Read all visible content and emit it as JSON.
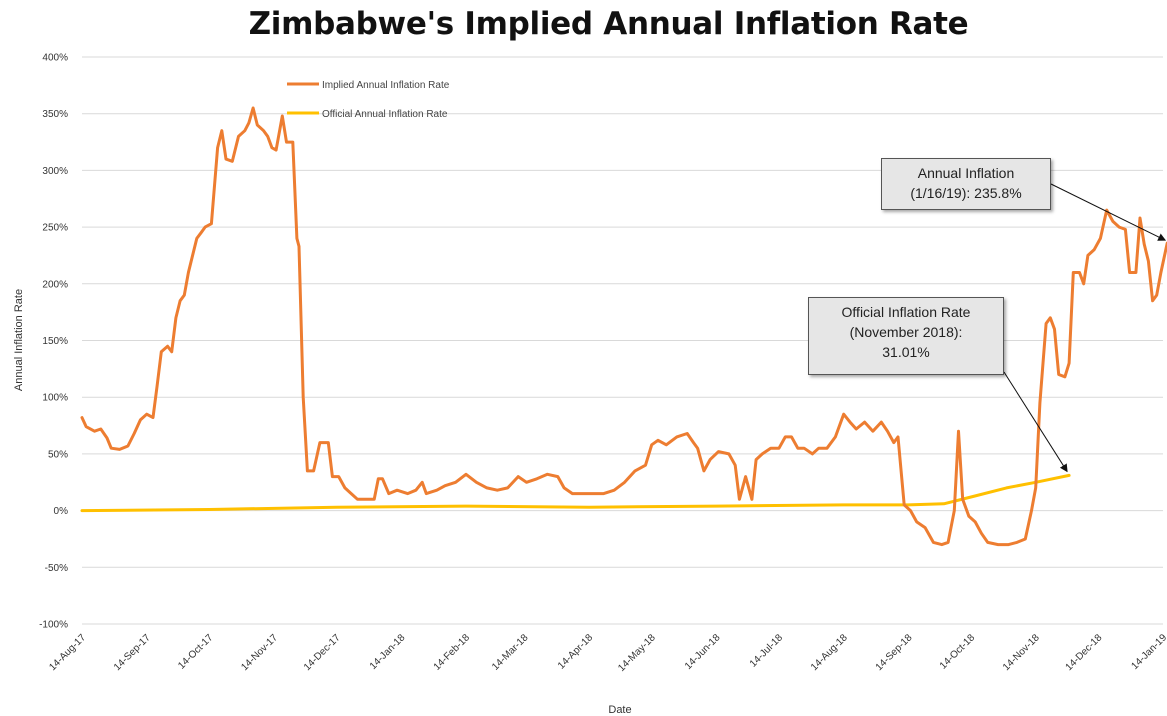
{
  "chart_data": {
    "type": "line",
    "title": "Zimbabwe's Implied Annual Inflation Rate",
    "xlabel": "Date",
    "ylabel": "Annual Inflation Rate",
    "ylim": [
      -100,
      400
    ],
    "y_ticks": [
      "-100%",
      "-50%",
      "0%",
      "50%",
      "100%",
      "150%",
      "200%",
      "250%",
      "300%",
      "350%",
      "400%"
    ],
    "x_range": [
      "2017-08-14",
      "2019-01-14"
    ],
    "x_ticks": [
      "14-Aug-17",
      "14-Sep-17",
      "14-Oct-17",
      "14-Nov-17",
      "14-Dec-17",
      "14-Jan-18",
      "14-Feb-18",
      "14-Mar-18",
      "14-Apr-18",
      "14-May-18",
      "14-Jun-18",
      "14-Jul-18",
      "14-Aug-18",
      "14-Sep-18",
      "14-Oct-18",
      "14-Nov-18",
      "14-Dec-18",
      "14-Jan-19"
    ],
    "grid": "horizontal",
    "legend_position": "top-left",
    "series": [
      {
        "name": "Implied Annual Inflation Rate",
        "color": "#ed7d31",
        "points": [
          [
            "2017-08-14",
            82
          ],
          [
            "2017-08-16",
            74
          ],
          [
            "2017-08-20",
            70
          ],
          [
            "2017-08-23",
            72
          ],
          [
            "2017-08-26",
            64
          ],
          [
            "2017-08-28",
            55
          ],
          [
            "2017-09-01",
            54
          ],
          [
            "2017-09-05",
            57
          ],
          [
            "2017-09-08",
            68
          ],
          [
            "2017-09-11",
            80
          ],
          [
            "2017-09-14",
            85
          ],
          [
            "2017-09-17",
            82
          ],
          [
            "2017-09-19",
            110
          ],
          [
            "2017-09-21",
            140
          ],
          [
            "2017-09-24",
            145
          ],
          [
            "2017-09-26",
            140
          ],
          [
            "2017-09-28",
            170
          ],
          [
            "2017-09-30",
            185
          ],
          [
            "2017-10-02",
            190
          ],
          [
            "2017-10-04",
            210
          ],
          [
            "2017-10-06",
            225
          ],
          [
            "2017-10-08",
            240
          ],
          [
            "2017-10-10",
            245
          ],
          [
            "2017-10-12",
            250
          ],
          [
            "2017-10-15",
            253
          ],
          [
            "2017-10-18",
            320
          ],
          [
            "2017-10-20",
            335
          ],
          [
            "2017-10-22",
            310
          ],
          [
            "2017-10-25",
            308
          ],
          [
            "2017-10-28",
            330
          ],
          [
            "2017-10-31",
            335
          ],
          [
            "2017-11-02",
            342
          ],
          [
            "2017-11-04",
            355
          ],
          [
            "2017-11-06",
            340
          ],
          [
            "2017-11-09",
            335
          ],
          [
            "2017-11-11",
            330
          ],
          [
            "2017-11-13",
            320
          ],
          [
            "2017-11-15",
            318
          ],
          [
            "2017-11-18",
            348
          ],
          [
            "2017-11-20",
            325
          ],
          [
            "2017-11-23",
            325
          ],
          [
            "2017-11-25",
            240
          ],
          [
            "2017-11-26",
            233
          ],
          [
            "2017-11-28",
            100
          ],
          [
            "2017-11-30",
            35
          ],
          [
            "2017-12-03",
            35
          ],
          [
            "2017-12-06",
            60
          ],
          [
            "2017-12-10",
            60
          ],
          [
            "2017-12-12",
            30
          ],
          [
            "2017-12-15",
            30
          ],
          [
            "2017-12-18",
            20
          ],
          [
            "2017-12-21",
            15
          ],
          [
            "2017-12-24",
            10
          ],
          [
            "2017-12-27",
            10
          ],
          [
            "2018-01-01",
            10
          ],
          [
            "2018-01-03",
            28
          ],
          [
            "2018-01-05",
            28
          ],
          [
            "2018-01-08",
            15
          ],
          [
            "2018-01-12",
            18
          ],
          [
            "2018-01-17",
            15
          ],
          [
            "2018-01-21",
            18
          ],
          [
            "2018-01-24",
            25
          ],
          [
            "2018-01-26",
            15
          ],
          [
            "2018-01-31",
            18
          ],
          [
            "2018-02-04",
            22
          ],
          [
            "2018-02-09",
            25
          ],
          [
            "2018-02-14",
            32
          ],
          [
            "2018-02-19",
            25
          ],
          [
            "2018-02-24",
            20
          ],
          [
            "2018-03-01",
            18
          ],
          [
            "2018-03-06",
            20
          ],
          [
            "2018-03-11",
            30
          ],
          [
            "2018-03-15",
            25
          ],
          [
            "2018-03-20",
            28
          ],
          [
            "2018-03-25",
            32
          ],
          [
            "2018-03-30",
            30
          ],
          [
            "2018-04-02",
            20
          ],
          [
            "2018-04-06",
            15
          ],
          [
            "2018-04-11",
            15
          ],
          [
            "2018-04-16",
            15
          ],
          [
            "2018-04-21",
            15
          ],
          [
            "2018-04-26",
            18
          ],
          [
            "2018-05-01",
            25
          ],
          [
            "2018-05-06",
            35
          ],
          [
            "2018-05-11",
            40
          ],
          [
            "2018-05-14",
            58
          ],
          [
            "2018-05-17",
            62
          ],
          [
            "2018-05-21",
            58
          ],
          [
            "2018-05-26",
            65
          ],
          [
            "2018-05-31",
            68
          ],
          [
            "2018-06-03",
            60
          ],
          [
            "2018-06-05",
            55
          ],
          [
            "2018-06-08",
            35
          ],
          [
            "2018-06-11",
            45
          ],
          [
            "2018-06-15",
            52
          ],
          [
            "2018-06-20",
            50
          ],
          [
            "2018-06-23",
            40
          ],
          [
            "2018-06-25",
            10
          ],
          [
            "2018-06-28",
            30
          ],
          [
            "2018-07-01",
            10
          ],
          [
            "2018-07-03",
            45
          ],
          [
            "2018-07-06",
            50
          ],
          [
            "2018-07-10",
            55
          ],
          [
            "2018-07-14",
            55
          ],
          [
            "2018-07-17",
            65
          ],
          [
            "2018-07-20",
            65
          ],
          [
            "2018-07-23",
            55
          ],
          [
            "2018-07-26",
            55
          ],
          [
            "2018-07-30",
            50
          ],
          [
            "2018-08-02",
            55
          ],
          [
            "2018-08-06",
            55
          ],
          [
            "2018-08-10",
            65
          ],
          [
            "2018-08-14",
            85
          ],
          [
            "2018-08-17",
            78
          ],
          [
            "2018-08-20",
            72
          ],
          [
            "2018-08-24",
            78
          ],
          [
            "2018-08-28",
            70
          ],
          [
            "2018-09-01",
            78
          ],
          [
            "2018-09-04",
            70
          ],
          [
            "2018-09-07",
            60
          ],
          [
            "2018-09-09",
            65
          ],
          [
            "2018-09-12",
            5
          ],
          [
            "2018-09-15",
            0
          ],
          [
            "2018-09-18",
            -10
          ],
          [
            "2018-09-22",
            -15
          ],
          [
            "2018-09-26",
            -28
          ],
          [
            "2018-09-30",
            -30
          ],
          [
            "2018-10-03",
            -28
          ],
          [
            "2018-10-06",
            0
          ],
          [
            "2018-10-08",
            70
          ],
          [
            "2018-10-10",
            10
          ],
          [
            "2018-10-13",
            -5
          ],
          [
            "2018-10-16",
            -10
          ],
          [
            "2018-10-19",
            -20
          ],
          [
            "2018-10-22",
            -28
          ],
          [
            "2018-10-27",
            -30
          ],
          [
            "2018-11-01",
            -30
          ],
          [
            "2018-11-05",
            -28
          ],
          [
            "2018-11-09",
            -25
          ],
          [
            "2018-11-12",
            0
          ],
          [
            "2018-11-14",
            20
          ],
          [
            "2018-11-16",
            95
          ],
          [
            "2018-11-19",
            165
          ],
          [
            "2018-11-21",
            170
          ],
          [
            "2018-11-23",
            160
          ],
          [
            "2018-11-25",
            120
          ],
          [
            "2018-11-28",
            118
          ],
          [
            "2018-11-30",
            130
          ],
          [
            "2018-12-02",
            210
          ],
          [
            "2018-12-05",
            210
          ],
          [
            "2018-12-07",
            200
          ],
          [
            "2018-12-09",
            225
          ],
          [
            "2018-12-12",
            230
          ],
          [
            "2018-12-15",
            240
          ],
          [
            "2018-12-18",
            265
          ],
          [
            "2018-12-21",
            255
          ],
          [
            "2018-12-24",
            250
          ],
          [
            "2018-12-27",
            248
          ],
          [
            "2018-12-29",
            210
          ],
          [
            "2019-01-01",
            210
          ],
          [
            "2019-01-03",
            258
          ],
          [
            "2019-01-05",
            235
          ],
          [
            "2019-01-07",
            220
          ],
          [
            "2019-01-09",
            185
          ],
          [
            "2019-01-11",
            190
          ],
          [
            "2019-01-13",
            210
          ],
          [
            "2019-01-16",
            235.8
          ]
        ]
      },
      {
        "name": "Official Annual Inflation Rate",
        "color": "#ffc000",
        "points": [
          [
            "2017-08-14",
            0
          ],
          [
            "2017-10-14",
            1
          ],
          [
            "2017-12-14",
            3
          ],
          [
            "2018-02-14",
            4
          ],
          [
            "2018-04-14",
            3
          ],
          [
            "2018-06-14",
            4
          ],
          [
            "2018-08-14",
            5
          ],
          [
            "2018-09-14",
            5
          ],
          [
            "2018-10-01",
            6
          ],
          [
            "2018-10-14",
            12
          ],
          [
            "2018-10-31",
            20
          ],
          [
            "2018-11-14",
            25
          ],
          [
            "2018-11-30",
            31.01
          ]
        ]
      }
    ],
    "annotations": [
      {
        "lines": [
          "Annual Inflation",
          "(1/16/19): 235.8%"
        ],
        "target": [
          "2019-01-16",
          235.8
        ]
      },
      {
        "lines": [
          "Official Inflation Rate",
          "(November 2018):",
          "31.01%"
        ],
        "target": [
          "2018-11-30",
          31.01
        ]
      }
    ]
  }
}
